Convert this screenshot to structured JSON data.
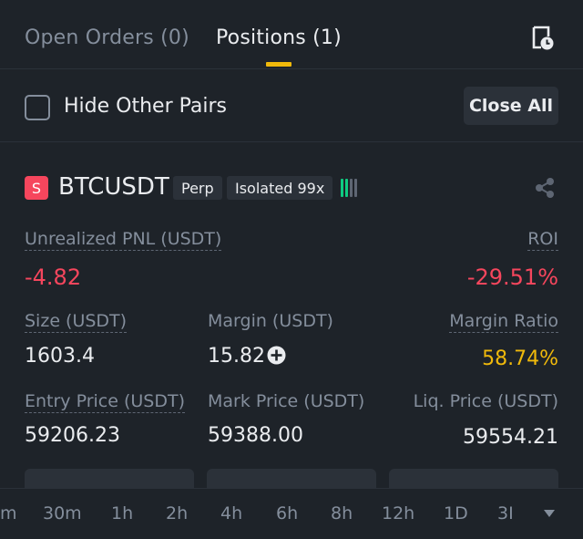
{
  "tabs": {
    "open_orders": "Open Orders (0)",
    "positions": "Positions (1)",
    "history_icon": "history-clock-icon"
  },
  "filter": {
    "hide_other_pairs": "Hide Other Pairs",
    "hide_other_pairs_checked": false,
    "close_all": "Close All"
  },
  "position": {
    "side_badge": "S",
    "symbol": "BTCUSDT",
    "contract_type": "Perp",
    "margin_mode": "Isolated 99x",
    "unrealized_pnl_label": "Unrealized PNL (USDT)",
    "unrealized_pnl": "-4.82",
    "roi_label": "ROI",
    "roi": "-29.51%",
    "size_label": "Size (USDT)",
    "size": "1603.4",
    "margin_label": "Margin (USDT)",
    "margin": "15.82",
    "margin_ratio_label": "Margin Ratio",
    "margin_ratio": "58.74%",
    "entry_price_label": "Entry Price (USDT)",
    "entry_price": "59206.23",
    "mark_price_label": "Mark Price (USDT)",
    "mark_price": "59388.00",
    "liq_price_label": "Liq. Price (USDT)",
    "liq_price": "59554.21"
  },
  "intervals": [
    "m",
    "30m",
    "1h",
    "2h",
    "4h",
    "6h",
    "8h",
    "12h",
    "1D",
    "3I"
  ],
  "colors": {
    "background": "#1e2329",
    "accent": "#f0b90b",
    "negative": "#f6465d",
    "positive": "#0ecb81",
    "muted": "#848e9c"
  }
}
